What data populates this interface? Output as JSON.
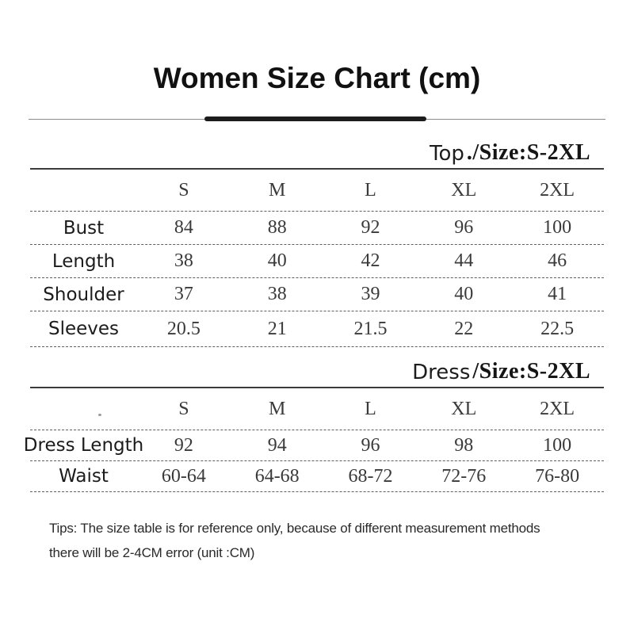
{
  "title": "Women Size Chart  (cm)",
  "sections": [
    {
      "heading_prefix": "Top",
      "heading_suffix": "./Size:S-2XL",
      "columns": [
        "S",
        "M",
        "L",
        "XL",
        "2XL"
      ],
      "rows": [
        {
          "label": "Bust",
          "values": [
            "84",
            "88",
            "92",
            "96",
            "100"
          ]
        },
        {
          "label": "Length",
          "values": [
            "38",
            "40",
            "42",
            "44",
            "46"
          ]
        },
        {
          "label": "Shoulder",
          "values": [
            "37",
            "38",
            "39",
            "40",
            "41"
          ]
        },
        {
          "label": "Sleeves",
          "values": [
            "20.5",
            "21",
            "21.5",
            "22",
            "22.5"
          ]
        }
      ]
    },
    {
      "heading_prefix": "Dress",
      "heading_suffix": "/Size:S-2XL",
      "columns": [
        "S",
        "M",
        "L",
        "XL",
        "2XL"
      ],
      "rows": [
        {
          "label": "Dress Length",
          "values": [
            "92",
            "94",
            "96",
            "98",
            "100"
          ]
        },
        {
          "label": "Waist",
          "values": [
            "60-64",
            "64-68",
            "68-72",
            "72-76",
            "76-80"
          ]
        }
      ]
    }
  ],
  "tips": {
    "line1": "Tips: The size table is for reference only, because of different measurement methods",
    "line2": "there will be 2-4CM error (unit :CM)"
  },
  "colors": {
    "background": "#ffffff",
    "text": "#1a1a1a",
    "accent_bar": "#1c1c1c",
    "rule_thin": "#8a8a8a",
    "rule_solid": "#3c3c3c",
    "dashed_divider": "#5f5f5f"
  }
}
